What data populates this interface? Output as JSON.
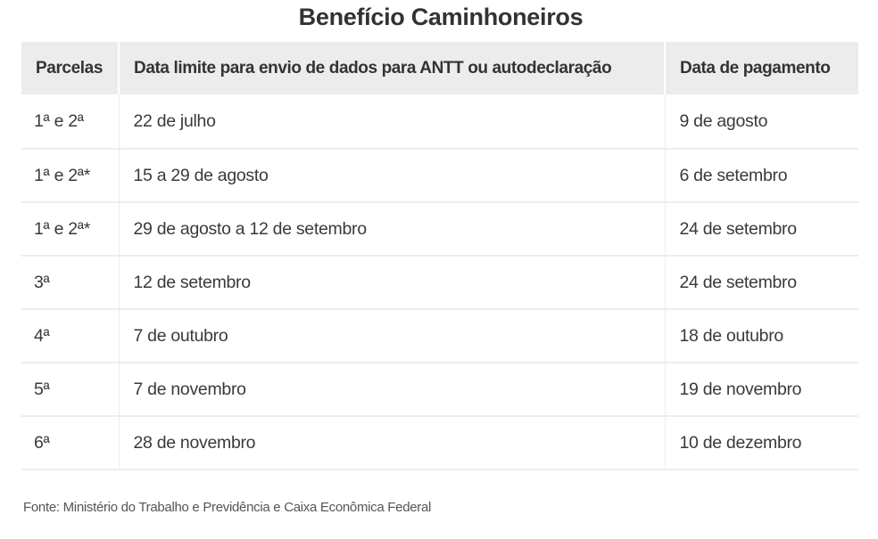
{
  "title": "Benefício Caminhoneiros",
  "table": {
    "headers": [
      "Parcelas",
      "Data limite para envio de dados para ANTT ou autodeclaração",
      "Data de pagamento"
    ],
    "rows": [
      [
        "1ª e 2ª",
        "22 de julho",
        "9 de agosto"
      ],
      [
        "1ª e 2ª*",
        "15 a 29 de agosto",
        "6 de setembro"
      ],
      [
        "1ª e 2ª*",
        "29 de agosto a 12 de setembro",
        "24 de setembro"
      ],
      [
        "3ª",
        "12 de setembro",
        "24 de setembro"
      ],
      [
        "4ª",
        "7 de outubro",
        "18 de outubro"
      ],
      [
        "5ª",
        "7 de novembro",
        "19 de novembro"
      ],
      [
        "6ª",
        "28 de novembro",
        "10 de dezembro"
      ]
    ]
  },
  "source": "Fonte: Ministério do Trabalho e Previdência e Caixa Econômica Federal",
  "colors": {
    "header_bg": "#ececec",
    "text": "#333333",
    "row_border": "#ededed"
  }
}
